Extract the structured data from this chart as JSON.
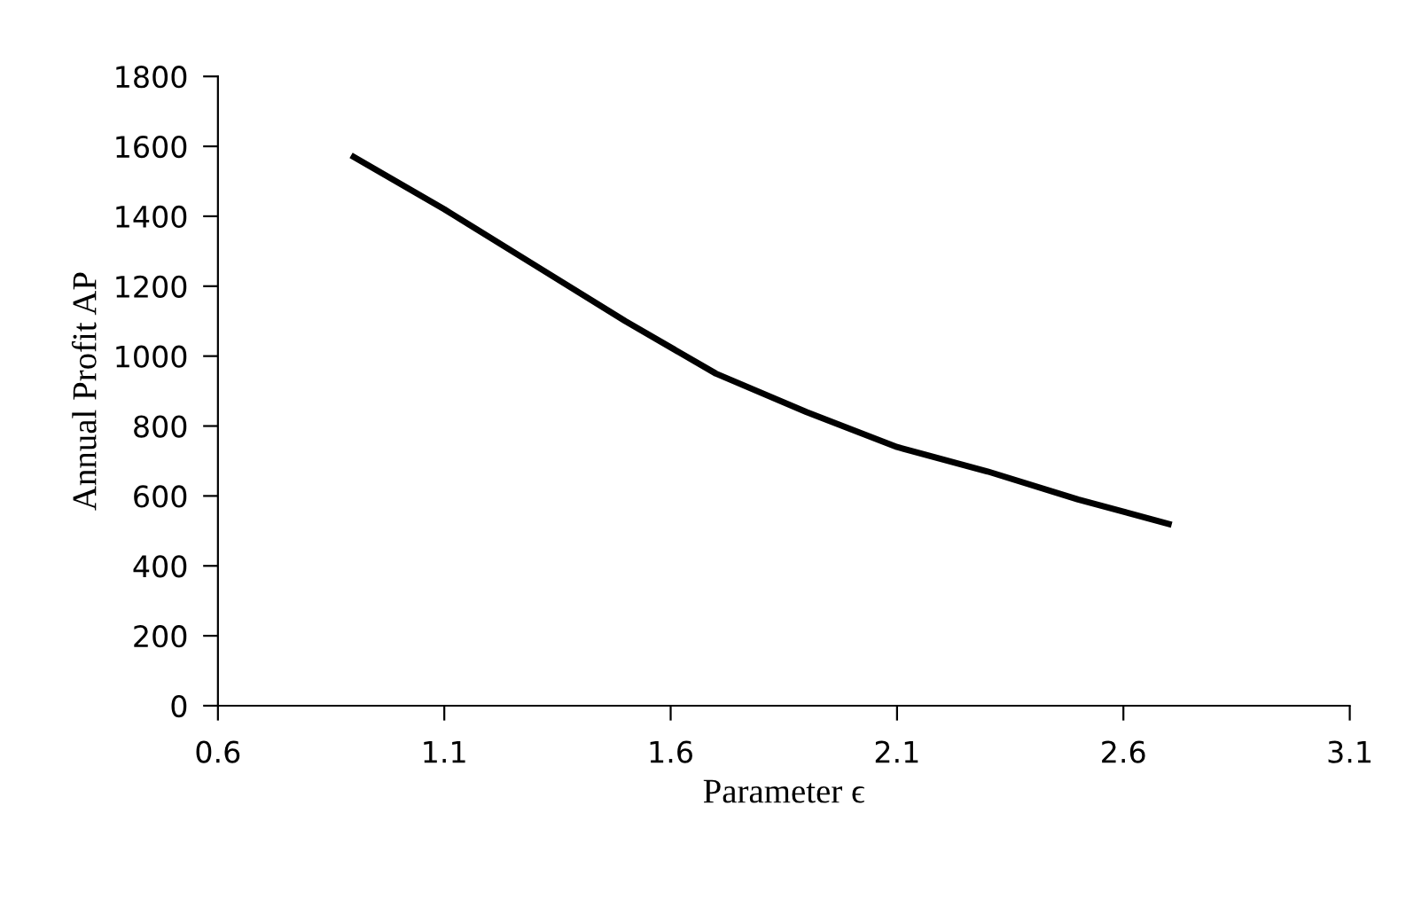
{
  "chart_data": {
    "type": "line",
    "xlabel": "Parameter ϵ",
    "ylabel": "Annual Profit AP",
    "x": [
      0.9,
      1.1,
      1.3,
      1.5,
      1.7,
      1.9,
      2.1,
      2.3,
      2.5,
      2.7
    ],
    "series": [
      {
        "color": "#000000",
        "values": [
          1570,
          1420,
          1260,
          1100,
          950,
          840,
          740,
          670,
          590,
          520
        ]
      }
    ],
    "xlim": [
      0.6,
      3.1
    ],
    "xticks": [
      0.6,
      1.1,
      1.6,
      2.1,
      2.6,
      3.1
    ],
    "ylim": [
      0,
      1800
    ],
    "yticks": [
      0,
      200,
      400,
      600,
      800,
      1000,
      1200,
      1400,
      1600,
      1800
    ],
    "grid": false,
    "legend": false,
    "marker": "none",
    "line_style": "solid"
  }
}
